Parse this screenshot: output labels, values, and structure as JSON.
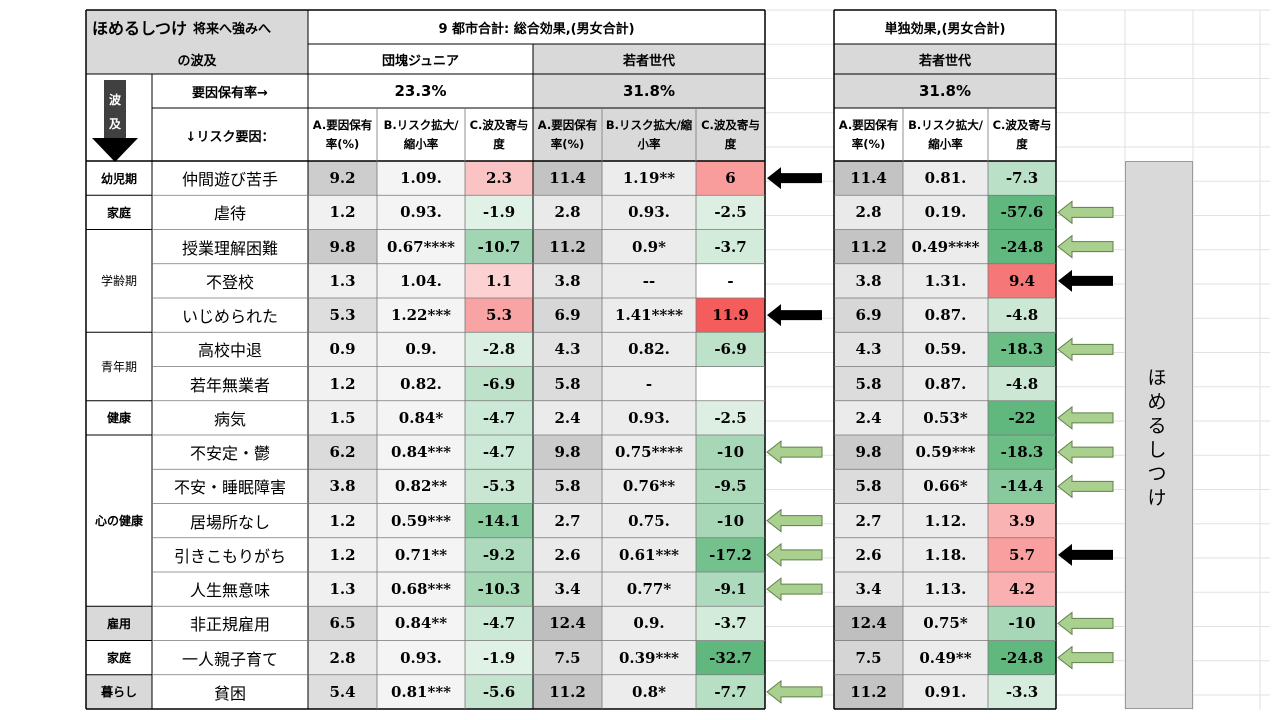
{
  "title": {
    "main": "ほめるしつけ",
    "small": "将来へ強みへ",
    "line2": "の波及"
  },
  "flow_label": {
    "chars": [
      "波",
      "及"
    ]
  },
  "header": {
    "combined_title": "9 都市合計: 総合効果,(男女合計)",
    "single_title": "単独効果,(男女合計)",
    "groups": {
      "junior": "団塊ジュニア",
      "young": "若者世代",
      "single_young": "若者世代"
    },
    "rate_label": "要因保有率→",
    "risk_label": "↓リスク要因：",
    "rates": {
      "junior": "23.3%",
      "young": "31.8%",
      "single_young": "31.8%"
    },
    "cols": {
      "A": "A.要因保有率(%)",
      "B": "B.リスク拡大/縮小率",
      "C": "C.波及寄与度"
    }
  },
  "side_label": "ほめるしつけ",
  "colors": {
    "header_gray": "#d9d9d9",
    "light_gray": "#ececec",
    "arrow_green": "#a9d08e",
    "arrow_black": "#000000"
  },
  "categories": [
    {
      "label": "幼児期",
      "span": 1
    },
    {
      "label": "家庭",
      "span": 1
    },
    {
      "label": "学齢期",
      "span": 3
    },
    {
      "label": "青年期",
      "span": 2
    },
    {
      "label": "健康",
      "span": 1
    },
    {
      "label": "心の健康",
      "span": 5
    },
    {
      "label": "雇用",
      "span": 1
    },
    {
      "label": "家庭",
      "span": 1
    },
    {
      "label": "暮らし",
      "span": 1
    }
  ],
  "rows": [
    {
      "factor": "仲間遊び苦手",
      "junior": [
        "9.2",
        "1.09.",
        "2.3"
      ],
      "young": [
        "11.4",
        "1.19**",
        "6"
      ],
      "single": [
        "11.4",
        "0.81.",
        "-7.3"
      ]
    },
    {
      "factor": "虐待",
      "junior": [
        "1.2",
        "0.93.",
        "-1.9"
      ],
      "young": [
        "2.8",
        "0.93.",
        "-2.5"
      ],
      "single": [
        "2.8",
        "0.19.",
        "-57.6"
      ]
    },
    {
      "factor": "授業理解困難",
      "junior": [
        "9.8",
        "0.67****",
        "-10.7"
      ],
      "young": [
        "11.2",
        "0.9*",
        "-3.7"
      ],
      "single": [
        "11.2",
        "0.49****",
        "-24.8"
      ]
    },
    {
      "factor": "不登校",
      "junior": [
        "1.3",
        "1.04.",
        "1.1"
      ],
      "young": [
        "3.8",
        "--",
        "-"
      ],
      "single": [
        "3.8",
        "1.31.",
        "9.4"
      ]
    },
    {
      "factor": "いじめられた",
      "junior": [
        "5.3",
        "1.22***",
        "5.3"
      ],
      "young": [
        "6.9",
        "1.41****",
        "11.9"
      ],
      "single": [
        "6.9",
        "0.87.",
        "-4.8"
      ]
    },
    {
      "factor": "高校中退",
      "junior": [
        "0.9",
        "0.9.",
        "-2.8"
      ],
      "young": [
        "4.3",
        "0.82.",
        "-6.9"
      ],
      "single": [
        "4.3",
        "0.59.",
        "-18.3"
      ]
    },
    {
      "factor": "若年無業者",
      "junior": [
        "1.2",
        "0.82.",
        "-6.9"
      ],
      "young": [
        "5.8",
        "-",
        ""
      ],
      "single": [
        "5.8",
        "0.87.",
        "-4.8"
      ]
    },
    {
      "factor": "病気",
      "junior": [
        "1.5",
        "0.84*",
        "-4.7"
      ],
      "young": [
        "2.4",
        "0.93.",
        "-2.5"
      ],
      "single": [
        "2.4",
        "0.53*",
        "-22"
      ]
    },
    {
      "factor": "不安定・鬱",
      "junior": [
        "6.2",
        "0.84***",
        "-4.7"
      ],
      "young": [
        "9.8",
        "0.75****",
        "-10"
      ],
      "single": [
        "9.8",
        "0.59***",
        "-18.3"
      ]
    },
    {
      "factor": "不安・睡眠障害",
      "junior": [
        "3.8",
        "0.82**",
        "-5.3"
      ],
      "young": [
        "5.8",
        "0.76**",
        "-9.5"
      ],
      "single": [
        "5.8",
        "0.66*",
        "-14.4"
      ]
    },
    {
      "factor": "居場所なし",
      "junior": [
        "1.2",
        "0.59***",
        "-14.1"
      ],
      "young": [
        "2.7",
        "0.75.",
        "-10"
      ],
      "single": [
        "2.7",
        "1.12.",
        "3.9"
      ]
    },
    {
      "factor": "引きこもりがち",
      "junior": [
        "1.2",
        "0.71**",
        "-9.2"
      ],
      "young": [
        "2.6",
        "0.61***",
        "-17.2"
      ],
      "single": [
        "2.6",
        "1.18.",
        "5.7"
      ]
    },
    {
      "factor": "人生無意味",
      "junior": [
        "1.3",
        "0.68***",
        "-10.3"
      ],
      "young": [
        "3.4",
        "0.77*",
        "-9.1"
      ],
      "single": [
        "3.4",
        "1.13.",
        "4.2"
      ]
    },
    {
      "factor": "非正規雇用",
      "junior": [
        "6.5",
        "0.84**",
        "-4.7"
      ],
      "young": [
        "12.4",
        "0.9.",
        "-3.7"
      ],
      "single": [
        "12.4",
        "0.75*",
        "-10"
      ]
    },
    {
      "factor": "一人親子育て",
      "junior": [
        "2.8",
        "0.93.",
        "-1.9"
      ],
      "young": [
        "7.5",
        "0.39***",
        "-32.7"
      ],
      "single": [
        "7.5",
        "0.49**",
        "-24.8"
      ]
    },
    {
      "factor": "貧困",
      "junior": [
        "5.4",
        "0.81***",
        "-5.6"
      ],
      "young": [
        "11.2",
        "0.8*",
        "-7.7"
      ],
      "single": [
        "11.2",
        "0.91.",
        "-3.3"
      ]
    }
  ],
  "arrows": {
    "middle": [
      "black",
      "",
      "",
      "",
      "black",
      "",
      "",
      "",
      "green",
      "",
      "green",
      "green",
      "green",
      "",
      "",
      "green"
    ],
    "right": [
      "",
      "green",
      "green",
      "black",
      "",
      "green",
      "",
      "green",
      "green",
      "green",
      "",
      "black",
      "",
      "green",
      "green",
      ""
    ]
  }
}
